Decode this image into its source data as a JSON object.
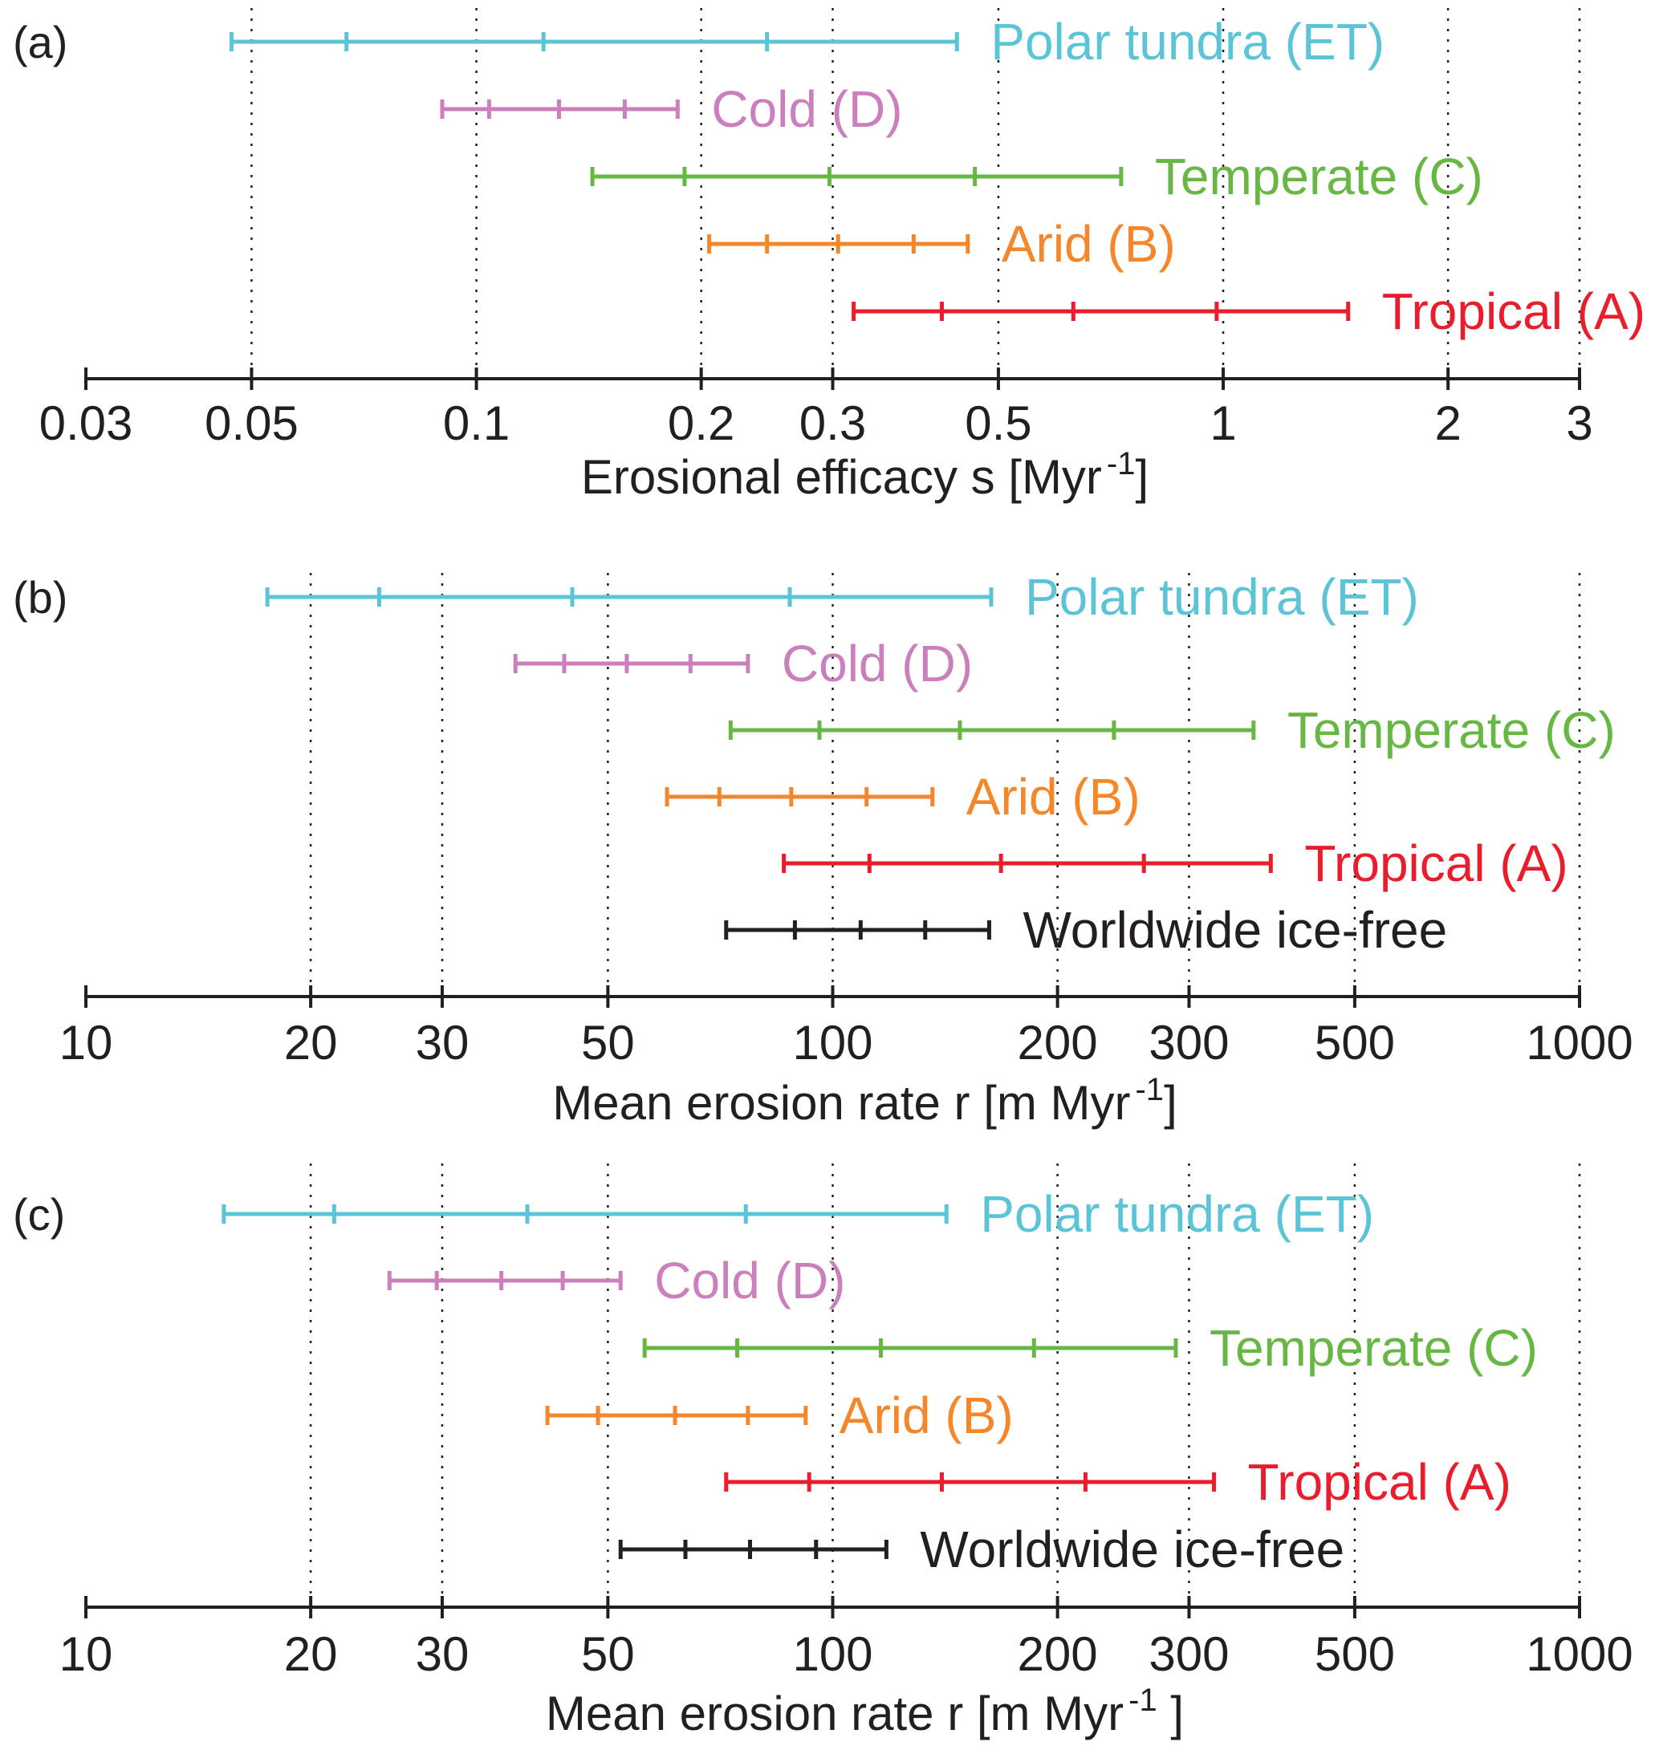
{
  "colors": {
    "polar": "#5bc4d6",
    "cold": "#cc7fbd",
    "temperate": "#67b745",
    "arid": "#f5872a",
    "tropical": "#ea1d2c",
    "worldwide": "#231f20",
    "axis": "#231f20"
  },
  "chart_data": [
    {
      "type": "range",
      "panel_label": "(a)",
      "x_scale": "log",
      "xlim": [
        0.03,
        3
      ],
      "xticks": [
        0.03,
        0.05,
        0.1,
        0.2,
        0.3,
        0.5,
        1,
        2,
        3
      ],
      "xtick_labels": [
        "0.03",
        "0.05",
        "0.1",
        "0.2",
        "0.3",
        "0.5",
        "1",
        "2",
        "3"
      ],
      "grid_x": [
        0.05,
        0.1,
        0.2,
        0.3,
        0.5,
        1,
        2,
        3
      ],
      "xlabel": {
        "text": "Erosional efficacy s  [Myr",
        "sup": "-1",
        "close": "]"
      },
      "series": [
        {
          "name": "Polar tundra (ET)",
          "color_key": "polar",
          "marks": [
            0.047,
            0.067,
            0.123,
            0.245,
            0.44
          ]
        },
        {
          "name": "Cold (D)",
          "color_key": "cold",
          "marks": [
            0.09,
            0.104,
            0.129,
            0.158,
            0.186
          ]
        },
        {
          "name": "Temperate (C)",
          "color_key": "temperate",
          "marks": [
            0.143,
            0.19,
            0.297,
            0.465,
            0.73
          ]
        },
        {
          "name": "Arid (B)",
          "color_key": "arid",
          "marks": [
            0.205,
            0.245,
            0.305,
            0.385,
            0.455
          ]
        },
        {
          "name": "Tropical (A)",
          "color_key": "tropical",
          "marks": [
            0.32,
            0.42,
            0.63,
            0.98,
            1.47
          ]
        }
      ]
    },
    {
      "type": "range",
      "panel_label": "(b)",
      "x_scale": "log",
      "xlim": [
        10,
        1000
      ],
      "xticks": [
        10,
        20,
        30,
        50,
        100,
        200,
        300,
        500,
        1000
      ],
      "xtick_labels": [
        "10",
        "20",
        "30",
        "50",
        "100",
        "200",
        "300",
        "500",
        "1000"
      ],
      "grid_x": [
        20,
        30,
        50,
        100,
        200,
        300,
        500,
        1000
      ],
      "xlabel": {
        "text": "Mean erosion rate r [m Myr",
        "sup": "-1",
        "close": "]"
      },
      "series": [
        {
          "name": "Polar tundra (ET)",
          "color_key": "polar",
          "marks": [
            17.5,
            24.7,
            44.8,
            87.6,
            163
          ]
        },
        {
          "name": "Cold (D)",
          "color_key": "cold",
          "marks": [
            37.6,
            43.7,
            53,
            64.5,
            77
          ]
        },
        {
          "name": "Temperate (C)",
          "color_key": "temperate",
          "marks": [
            73,
            96,
            148,
            238,
            366
          ]
        },
        {
          "name": "Arid (B)",
          "color_key": "arid",
          "marks": [
            60,
            70.5,
            88,
            111,
            136
          ]
        },
        {
          "name": "Tropical (A)",
          "color_key": "tropical",
          "marks": [
            86,
            112,
            168,
            261,
            386
          ]
        },
        {
          "name": "Worldwide ice-free",
          "color_key": "worldwide",
          "marks": [
            72,
            89,
            109,
            133,
            162
          ]
        }
      ]
    },
    {
      "type": "range",
      "panel_label": "(c)",
      "x_scale": "log",
      "xlim": [
        10,
        1000
      ],
      "xticks": [
        10,
        20,
        30,
        50,
        100,
        200,
        300,
        500,
        1000
      ],
      "xtick_labels": [
        "10",
        "20",
        "30",
        "50",
        "100",
        "200",
        "300",
        "500",
        "1000"
      ],
      "grid_x": [
        20,
        30,
        50,
        100,
        200,
        300,
        500,
        1000
      ],
      "xlabel": {
        "text": "Mean erosion rate r [m Myr",
        "sup": "-1",
        "close": " ]"
      },
      "series": [
        {
          "name": "Polar tundra (ET)",
          "color_key": "polar",
          "marks": [
            15.3,
            21.5,
            39,
            76.5,
            142
          ]
        },
        {
          "name": "Cold (D)",
          "color_key": "cold",
          "marks": [
            25.5,
            29.5,
            36,
            43.5,
            52
          ]
        },
        {
          "name": "Temperate (C)",
          "color_key": "temperate",
          "marks": [
            56,
            74.5,
            116,
            186,
            288
          ]
        },
        {
          "name": "Arid (B)",
          "color_key": "arid",
          "marks": [
            41.5,
            48.5,
            61.5,
            77,
            92
          ]
        },
        {
          "name": "Tropical (A)",
          "color_key": "tropical",
          "marks": [
            72,
            93,
            140,
            218,
            324
          ]
        },
        {
          "name": "Worldwide ice-free",
          "color_key": "worldwide",
          "marks": [
            52,
            63.5,
            77.5,
            95,
            118
          ]
        }
      ]
    }
  ]
}
